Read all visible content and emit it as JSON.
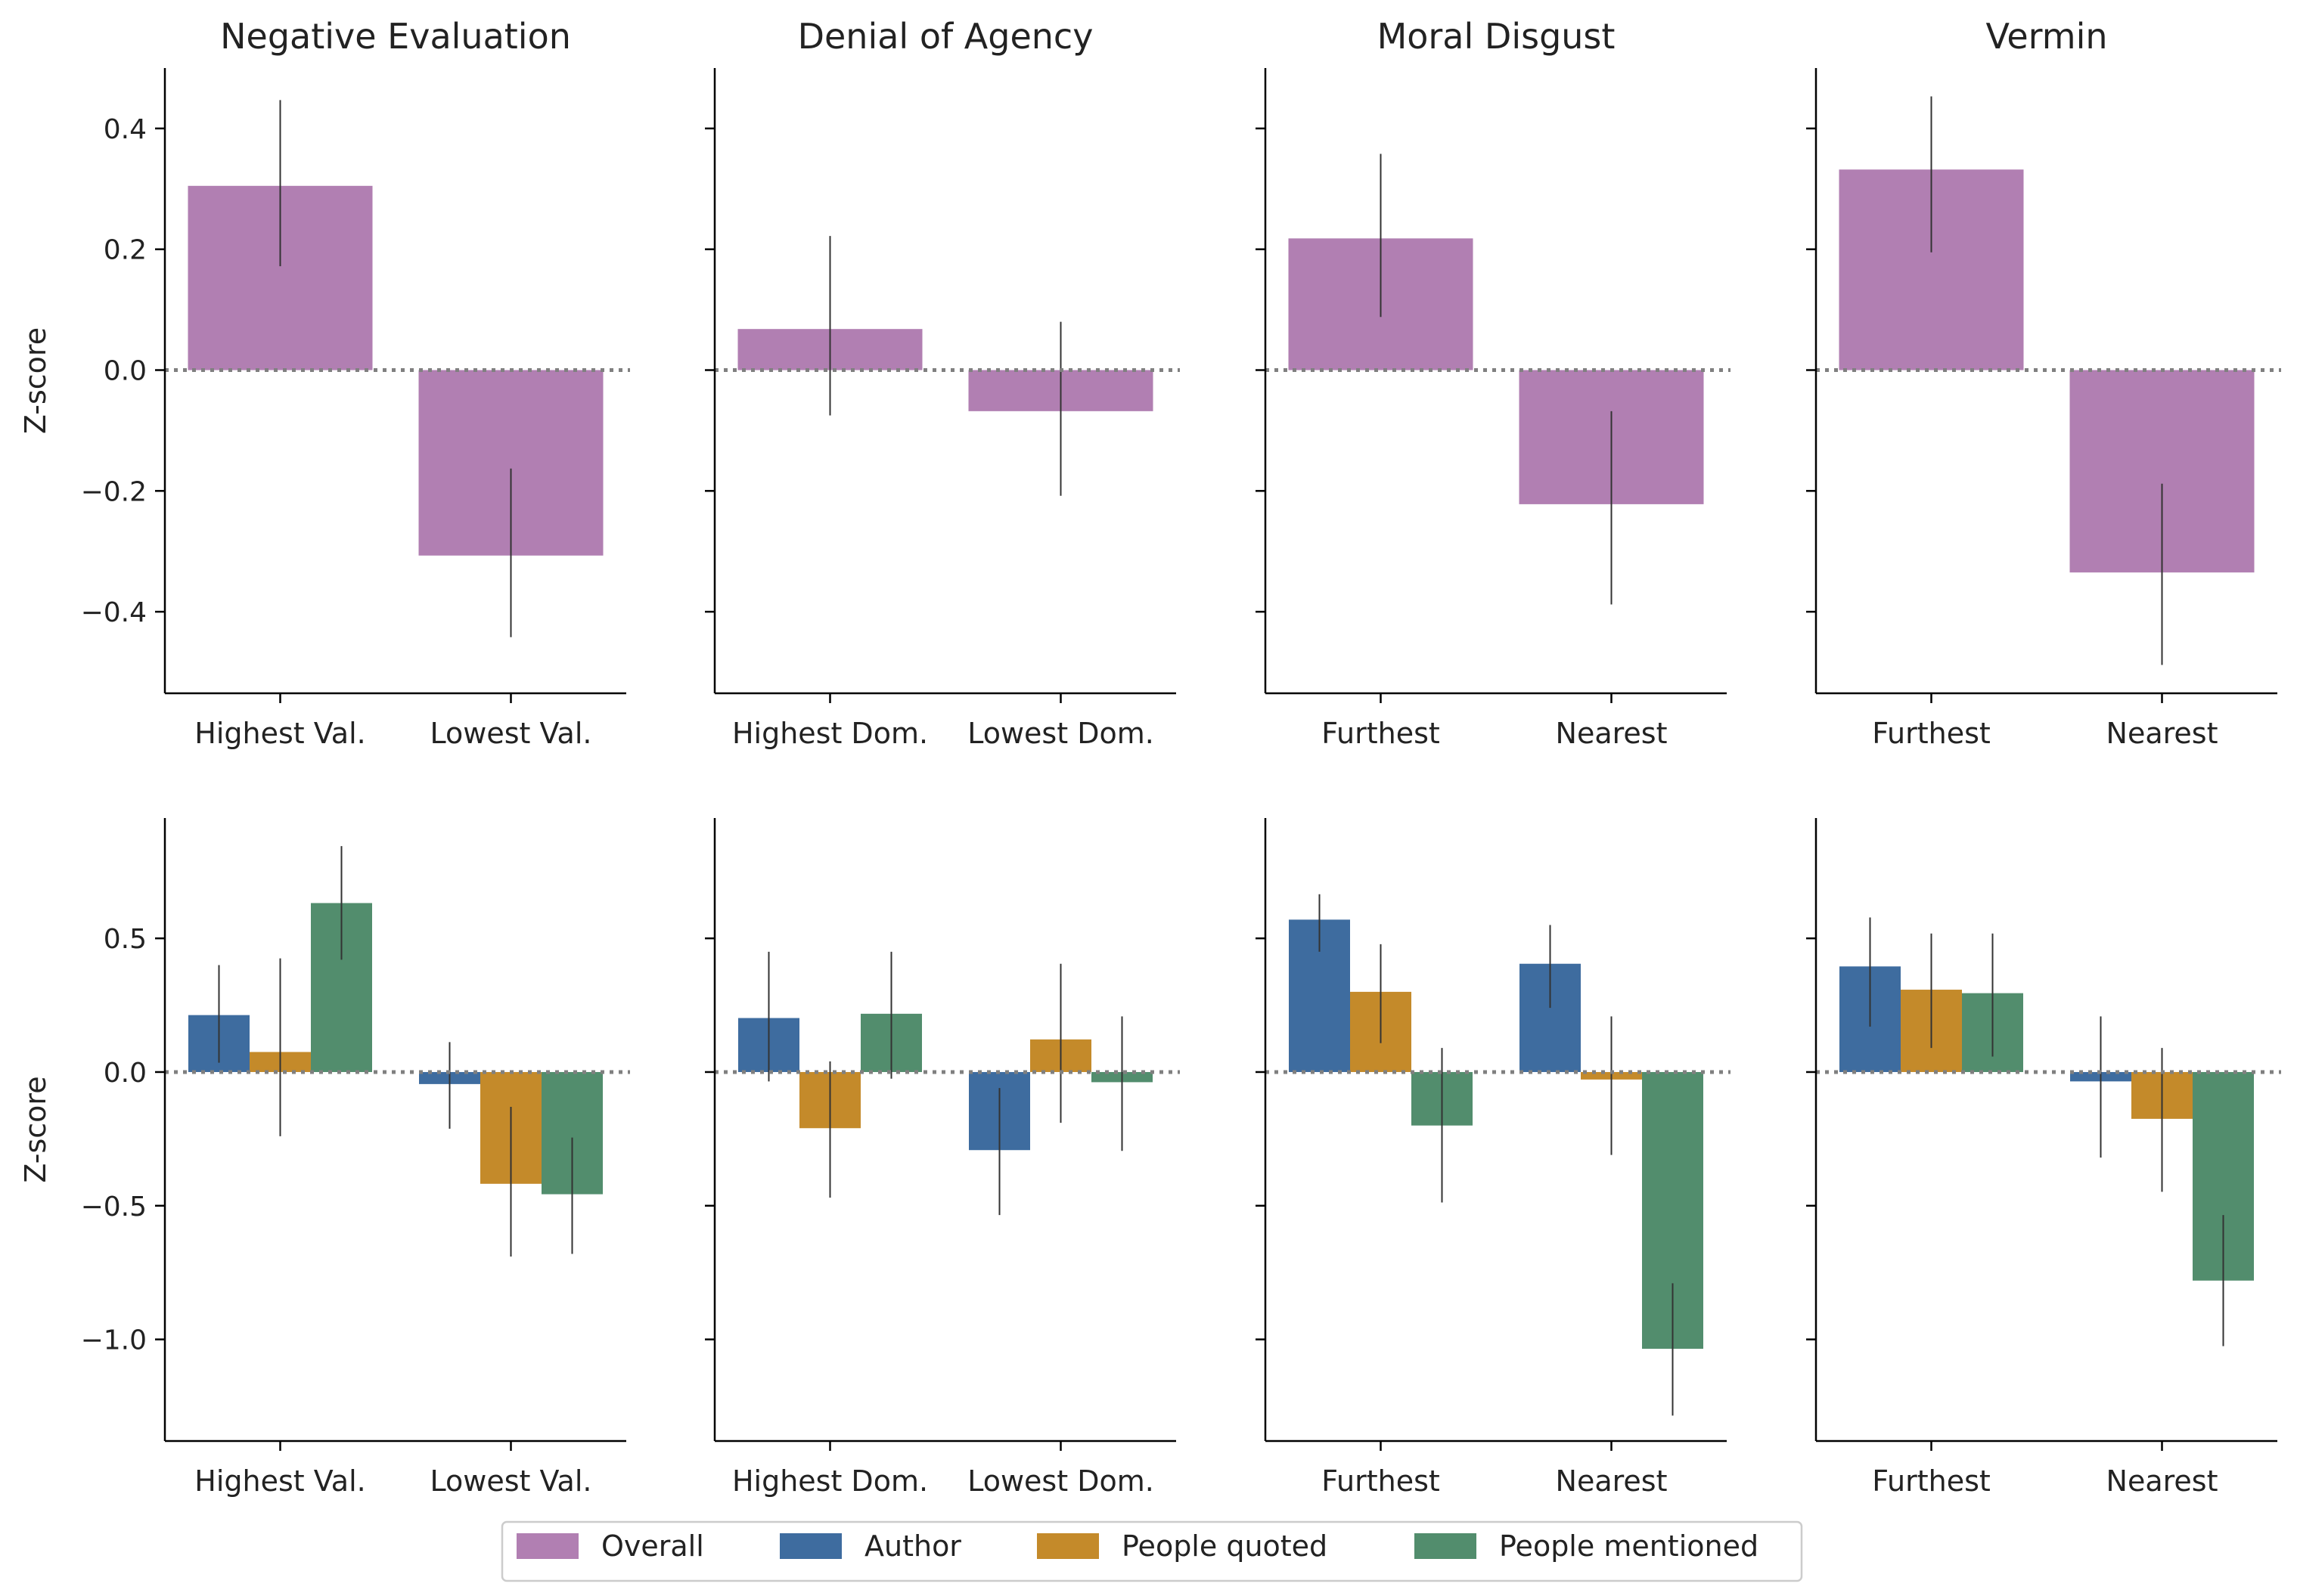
{
  "figure": {
    "ylabel": "Z-score",
    "colors": {
      "Overall": "#b17fb2",
      "Author": "#3e6c9f",
      "People quoted": "#c48a2a",
      "People mentioned": "#528d6d",
      "errorbar": "#333333",
      "zeroline": "#808080"
    },
    "legend": {
      "placement": "bottom-center",
      "entries": [
        "Overall",
        "Author",
        "People quoted",
        "People mentioned"
      ]
    }
  },
  "chart_data": [
    {
      "type": "bar",
      "panel": "top",
      "column": 1,
      "title": "Negative Evaluation",
      "xlabel": "",
      "ylabel": "Z-score",
      "ylim": [
        -0.535,
        0.5
      ],
      "yticks": [
        0.4,
        0.2,
        0.0,
        -0.2,
        -0.4
      ],
      "ytick_labels": [
        "0.4",
        "0.2",
        "0.0",
        "−0.2",
        "−0.4"
      ],
      "categories": [
        "Highest Val.",
        "Lowest Val."
      ],
      "series": [
        {
          "name": "Overall",
          "values": [
            0.305,
            -0.307
          ],
          "ci_low": [
            0.172,
            -0.442
          ],
          "ci_high": [
            0.447,
            -0.163
          ]
        }
      ]
    },
    {
      "type": "bar",
      "panel": "top",
      "column": 2,
      "title": "Denial of Agency",
      "xlabel": "",
      "ylabel": "",
      "ylim": [
        -0.535,
        0.5
      ],
      "yticks": [
        0.4,
        0.2,
        0.0,
        -0.2,
        -0.4
      ],
      "ytick_labels": [],
      "categories": [
        "Highest Dom.",
        "Lowest Dom."
      ],
      "series": [
        {
          "name": "Overall",
          "values": [
            0.068,
            -0.068
          ],
          "ci_low": [
            -0.075,
            -0.208
          ],
          "ci_high": [
            0.222,
            0.08
          ]
        }
      ]
    },
    {
      "type": "bar",
      "panel": "top",
      "column": 3,
      "title": "Moral Disgust",
      "xlabel": "",
      "ylabel": "",
      "ylim": [
        -0.535,
        0.5
      ],
      "yticks": [
        0.4,
        0.2,
        0.0,
        -0.2,
        -0.4
      ],
      "ytick_labels": [],
      "categories": [
        "Furthest",
        "Nearest"
      ],
      "series": [
        {
          "name": "Overall",
          "values": [
            0.218,
            -0.222
          ],
          "ci_low": [
            0.088,
            -0.388
          ],
          "ci_high": [
            0.358,
            -0.068
          ]
        }
      ]
    },
    {
      "type": "bar",
      "panel": "top",
      "column": 4,
      "title": "Vermin",
      "xlabel": "",
      "ylabel": "",
      "ylim": [
        -0.535,
        0.5
      ],
      "yticks": [
        0.4,
        0.2,
        0.0,
        -0.2,
        -0.4
      ],
      "ytick_labels": [],
      "categories": [
        "Furthest",
        "Nearest"
      ],
      "series": [
        {
          "name": "Overall",
          "values": [
            0.332,
            -0.335
          ],
          "ci_low": [
            0.195,
            -0.488
          ],
          "ci_high": [
            0.453,
            -0.188
          ]
        }
      ]
    },
    {
      "type": "bar",
      "panel": "bottom",
      "column": 1,
      "title": "",
      "xlabel": "",
      "ylabel": "Z-score",
      "ylim": [
        -1.38,
        0.95
      ],
      "yticks": [
        0.5,
        0.0,
        -0.5,
        -1.0
      ],
      "ytick_labels": [
        "0.5",
        "0.0",
        "−0.5",
        "−1.0"
      ],
      "categories": [
        "Highest Val.",
        "Lowest Val."
      ],
      "series": [
        {
          "name": "Author",
          "values": [
            0.213,
            -0.045
          ],
          "ci_low": [
            0.035,
            -0.212
          ],
          "ci_high": [
            0.4,
            0.112
          ]
        },
        {
          "name": "People quoted",
          "values": [
            0.075,
            -0.418
          ],
          "ci_low": [
            -0.24,
            -0.69
          ],
          "ci_high": [
            0.425,
            -0.13
          ]
        },
        {
          "name": "People mentioned",
          "values": [
            0.632,
            -0.457
          ],
          "ci_low": [
            0.42,
            -0.68
          ],
          "ci_high": [
            0.845,
            -0.245
          ]
        }
      ]
    },
    {
      "type": "bar",
      "panel": "bottom",
      "column": 2,
      "title": "",
      "xlabel": "",
      "ylabel": "",
      "ylim": [
        -1.38,
        0.95
      ],
      "yticks": [
        0.5,
        0.0,
        -0.5,
        -1.0
      ],
      "ytick_labels": [],
      "categories": [
        "Highest Dom.",
        "Lowest Dom."
      ],
      "series": [
        {
          "name": "Author",
          "values": [
            0.202,
            -0.292
          ],
          "ci_low": [
            -0.035,
            -0.535
          ],
          "ci_high": [
            0.45,
            -0.06
          ]
        },
        {
          "name": "People quoted",
          "values": [
            -0.21,
            0.122
          ],
          "ci_low": [
            -0.47,
            -0.19
          ],
          "ci_high": [
            0.04,
            0.405
          ]
        },
        {
          "name": "People mentioned",
          "values": [
            0.218,
            -0.038
          ],
          "ci_low": [
            -0.025,
            -0.295
          ],
          "ci_high": [
            0.45,
            0.208
          ]
        }
      ]
    },
    {
      "type": "bar",
      "panel": "bottom",
      "column": 3,
      "title": "",
      "xlabel": "",
      "ylabel": "",
      "ylim": [
        -1.38,
        0.95
      ],
      "yticks": [
        0.5,
        0.0,
        -0.5,
        -1.0
      ],
      "ytick_labels": [],
      "categories": [
        "Furthest",
        "Nearest"
      ],
      "series": [
        {
          "name": "Author",
          "values": [
            0.57,
            0.405
          ],
          "ci_low": [
            0.45,
            0.24
          ],
          "ci_high": [
            0.665,
            0.55
          ]
        },
        {
          "name": "People quoted",
          "values": [
            0.3,
            -0.028
          ],
          "ci_low": [
            0.108,
            -0.31
          ],
          "ci_high": [
            0.478,
            0.208
          ]
        },
        {
          "name": "People mentioned",
          "values": [
            -0.2,
            -1.035
          ],
          "ci_low": [
            -0.488,
            -1.285
          ],
          "ci_high": [
            0.09,
            -0.79
          ]
        }
      ]
    },
    {
      "type": "bar",
      "panel": "bottom",
      "column": 4,
      "title": "",
      "xlabel": "",
      "ylabel": "",
      "ylim": [
        -1.38,
        0.95
      ],
      "yticks": [
        0.5,
        0.0,
        -0.5,
        -1.0
      ],
      "ytick_labels": [],
      "categories": [
        "Furthest",
        "Nearest"
      ],
      "series": [
        {
          "name": "Author",
          "values": [
            0.395,
            -0.035
          ],
          "ci_low": [
            0.17,
            -0.32
          ],
          "ci_high": [
            0.578,
            0.208
          ]
        },
        {
          "name": "People quoted",
          "values": [
            0.308,
            -0.175
          ],
          "ci_low": [
            0.09,
            -0.448
          ],
          "ci_high": [
            0.518,
            0.09
          ]
        },
        {
          "name": "People mentioned",
          "values": [
            0.295,
            -0.78
          ],
          "ci_low": [
            0.058,
            -1.025
          ],
          "ci_high": [
            0.518,
            -0.535
          ]
        }
      ]
    }
  ]
}
